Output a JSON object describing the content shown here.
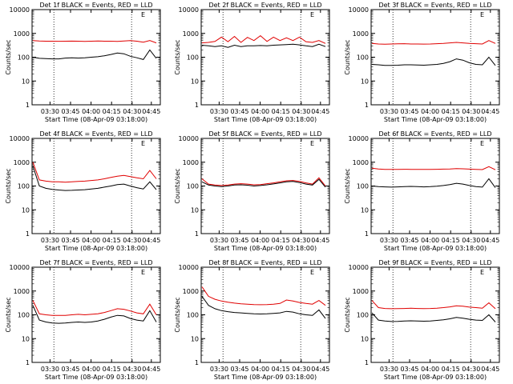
{
  "ylabel": "Counts/sec",
  "xlabel": "Start Time (08-Apr-09 03:18:00)",
  "xticks": [
    "03:30",
    "03:45",
    "04:00",
    "04:15",
    "04:30",
    "04:45"
  ],
  "yticks": [
    "1",
    "10",
    "100",
    "1000",
    "10000"
  ],
  "marker_label": "E",
  "colors": {
    "events": "#000000",
    "lld": "#e00000",
    "vline": "#000000"
  },
  "chart_data": [
    {
      "type": "line",
      "title": "Det 1f BLACK = Events, RED = LLD",
      "ylim": [
        1,
        10000
      ],
      "yscale": "log",
      "series": [
        {
          "name": "LLD",
          "color": "#e00000",
          "values": [
            500,
            480,
            470,
            470,
            465,
            470,
            475,
            470,
            460,
            470,
            480,
            470,
            470,
            460,
            480,
            500,
            470,
            430,
            500,
            400
          ]
        },
        {
          "name": "Events",
          "color": "#000000",
          "values": [
            100,
            90,
            88,
            85,
            85,
            92,
            95,
            92,
            95,
            100,
            105,
            115,
            130,
            150,
            140,
            110,
            95,
            80,
            200,
            90
          ]
        }
      ]
    },
    {
      "type": "line",
      "title": "Det 2f BLACK = Events, RED = LLD",
      "ylim": [
        1,
        10000
      ],
      "yscale": "log",
      "series": [
        {
          "name": "LLD",
          "color": "#e00000",
          "values": [
            400,
            420,
            460,
            700,
            450,
            750,
            420,
            680,
            500,
            800,
            460,
            700,
            500,
            650,
            500,
            700,
            450,
            420,
            500,
            380
          ]
        },
        {
          "name": "Events",
          "color": "#000000",
          "values": [
            320,
            300,
            280,
            300,
            260,
            320,
            280,
            300,
            300,
            310,
            300,
            320,
            330,
            340,
            350,
            330,
            300,
            280,
            350,
            280
          ]
        }
      ]
    },
    {
      "type": "line",
      "title": "Det 3f BLACK = Events, RED = LLD",
      "ylim": [
        1,
        10000
      ],
      "yscale": "log",
      "series": [
        {
          "name": "LLD",
          "color": "#e00000",
          "values": [
            380,
            360,
            350,
            360,
            365,
            370,
            360,
            360,
            355,
            360,
            370,
            380,
            400,
            420,
            400,
            380,
            370,
            360,
            500,
            380
          ]
        },
        {
          "name": "Events",
          "color": "#000000",
          "values": [
            50,
            48,
            45,
            45,
            46,
            48,
            48,
            47,
            46,
            48,
            50,
            55,
            65,
            85,
            75,
            58,
            50,
            48,
            100,
            45
          ]
        }
      ]
    },
    {
      "type": "line",
      "title": "Det 4f BLACK = Events, RED = LLD",
      "ylim": [
        1,
        10000
      ],
      "yscale": "log",
      "series": [
        {
          "name": "LLD",
          "color": "#e00000",
          "values": [
            1000,
            180,
            160,
            150,
            150,
            145,
            150,
            155,
            160,
            170,
            180,
            200,
            230,
            260,
            280,
            250,
            220,
            200,
            450,
            200
          ]
        },
        {
          "name": "Events",
          "color": "#000000",
          "values": [
            700,
            100,
            80,
            72,
            68,
            65,
            66,
            68,
            70,
            75,
            80,
            90,
            100,
            115,
            120,
            100,
            85,
            75,
            150,
            70
          ]
        }
      ]
    },
    {
      "type": "line",
      "title": "Det 5f BLACK = Events, RED = LLD",
      "ylim": [
        1,
        10000
      ],
      "yscale": "log",
      "series": [
        {
          "name": "LLD",
          "color": "#e00000",
          "values": [
            200,
            120,
            110,
            105,
            110,
            120,
            125,
            120,
            112,
            115,
            125,
            135,
            150,
            165,
            170,
            155,
            135,
            120,
            220,
            100
          ]
        },
        {
          "name": "Events",
          "color": "#000000",
          "values": [
            150,
            110,
            100,
            95,
            100,
            110,
            112,
            108,
            100,
            105,
            112,
            122,
            135,
            150,
            155,
            140,
            120,
            110,
            190,
            90
          ]
        }
      ]
    },
    {
      "type": "line",
      "title": "Det 6f BLACK = Events, RED = LLD",
      "ylim": [
        1,
        10000
      ],
      "yscale": "log",
      "series": [
        {
          "name": "LLD",
          "color": "#e00000",
          "values": [
            560,
            520,
            500,
            500,
            500,
            505,
            500,
            495,
            495,
            500,
            505,
            510,
            520,
            540,
            530,
            510,
            500,
            490,
            650,
            480
          ]
        },
        {
          "name": "Events",
          "color": "#000000",
          "values": [
            100,
            95,
            92,
            90,
            92,
            95,
            96,
            94,
            92,
            94,
            98,
            105,
            115,
            130,
            120,
            105,
            95,
            90,
            200,
            85
          ]
        }
      ]
    },
    {
      "type": "line",
      "title": "Det 7f BLACK = Events, RED = LLD",
      "ylim": [
        1,
        10000
      ],
      "yscale": "log",
      "series": [
        {
          "name": "LLD",
          "color": "#e00000",
          "values": [
            400,
            110,
            100,
            95,
            95,
            95,
            100,
            105,
            100,
            105,
            110,
            125,
            150,
            180,
            170,
            145,
            120,
            110,
            280,
            100
          ]
        },
        {
          "name": "Events",
          "color": "#000000",
          "values": [
            250,
            60,
            50,
            45,
            44,
            45,
            48,
            50,
            48,
            50,
            55,
            65,
            80,
            95,
            90,
            70,
            60,
            55,
            150,
            50
          ]
        }
      ]
    },
    {
      "type": "line",
      "title": "Det 8f BLACK = Events, RED = LLD",
      "ylim": [
        1,
        10000
      ],
      "yscale": "log",
      "series": [
        {
          "name": "LLD",
          "color": "#e00000",
          "values": [
            1500,
            600,
            450,
            380,
            340,
            310,
            290,
            280,
            270,
            265,
            270,
            280,
            300,
            420,
            380,
            330,
            300,
            280,
            400,
            250
          ]
        },
        {
          "name": "Events",
          "color": "#000000",
          "values": [
            600,
            250,
            180,
            150,
            135,
            125,
            120,
            115,
            110,
            108,
            110,
            115,
            120,
            140,
            130,
            110,
            100,
            95,
            160,
            70
          ]
        }
      ]
    },
    {
      "type": "line",
      "title": "Det 9f BLACK = Events, RED = LLD",
      "ylim": [
        1,
        10000
      ],
      "yscale": "log",
      "series": [
        {
          "name": "LLD",
          "color": "#e00000",
          "values": [
            400,
            200,
            185,
            180,
            182,
            185,
            188,
            185,
            182,
            185,
            190,
            200,
            215,
            240,
            230,
            210,
            200,
            190,
            320,
            180
          ]
        },
        {
          "name": "Events",
          "color": "#000000",
          "values": [
            120,
            60,
            55,
            52,
            53,
            55,
            56,
            55,
            54,
            55,
            58,
            62,
            68,
            78,
            72,
            65,
            60,
            58,
            100,
            50
          ]
        }
      ]
    }
  ]
}
